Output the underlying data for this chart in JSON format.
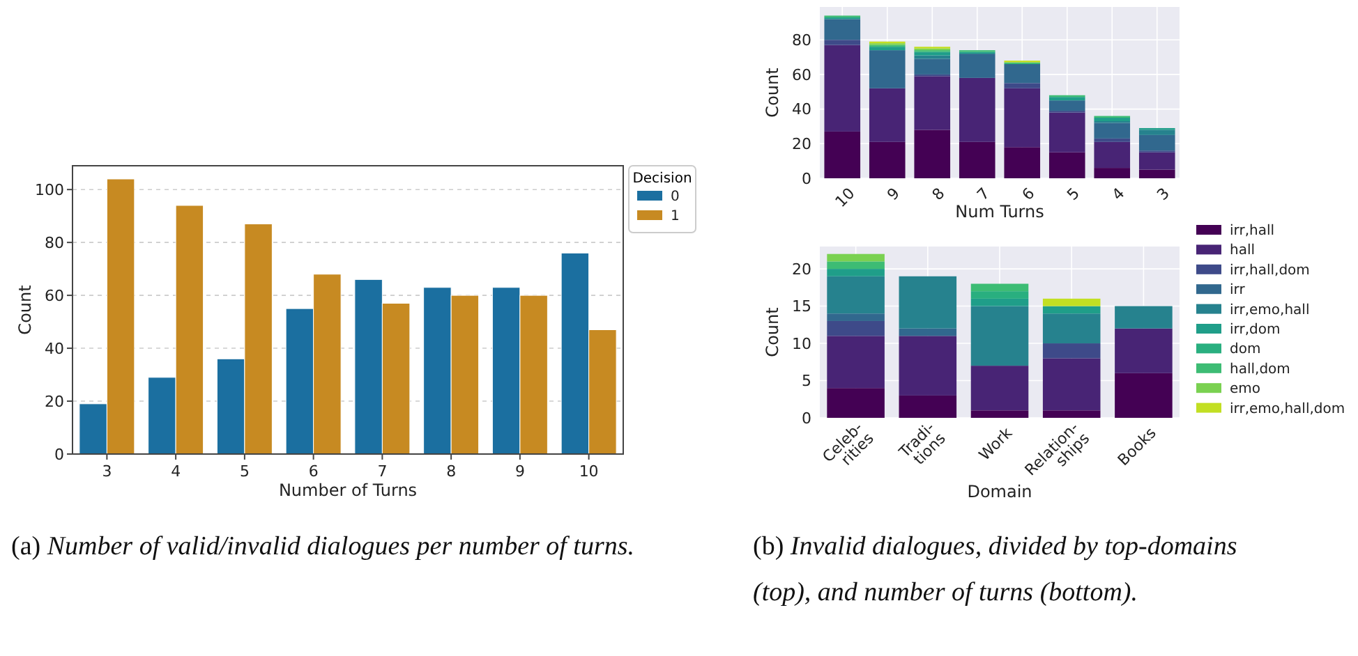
{
  "chart_data": [
    {
      "type": "bar",
      "xlabel": "Number of Turns",
      "ylabel": "Count",
      "legend_title": "Decision",
      "legend": "top right",
      "grid": "y",
      "categories": [
        "3",
        "4",
        "5",
        "6",
        "7",
        "8",
        "9",
        "10"
      ],
      "ylim": [
        0,
        109
      ],
      "yticks": [
        0,
        20,
        40,
        60,
        80,
        100
      ],
      "series": [
        {
          "name": "0",
          "color": "#1b6fa0",
          "values": [
            19,
            29,
            36,
            55,
            66,
            63,
            63,
            76
          ]
        },
        {
          "name": "1",
          "color": "#c78a22",
          "values": [
            104,
            94,
            87,
            68,
            57,
            60,
            60,
            47
          ]
        }
      ],
      "annotations": [
        "(a) Number of valid/invalid dialogues per number of turns."
      ]
    },
    {
      "type": "bar",
      "stacked": true,
      "xlabel": "Num Turns",
      "ylabel": "Count",
      "grid": true,
      "categories": [
        "10",
        "9",
        "8",
        "7",
        "6",
        "5",
        "4",
        "3"
      ],
      "ylim": [
        0,
        99
      ],
      "yticks": [
        0,
        20,
        40,
        60,
        80
      ],
      "series": [
        {
          "color": "#440154",
          "values": [
            27,
            21,
            28,
            21,
            18,
            15,
            6,
            5
          ]
        },
        {
          "color": "#482475",
          "values": [
            50,
            31,
            31,
            37,
            34,
            23,
            15,
            10
          ]
        },
        {
          "color": "#3e4a89",
          "values": [
            3,
            0,
            1,
            0,
            3,
            1,
            2,
            1
          ]
        },
        {
          "color": "#31688e",
          "values": [
            12,
            22,
            9,
            14,
            11,
            6,
            9,
            9
          ]
        },
        {
          "color": "#26828e",
          "values": [
            0,
            0,
            2,
            0,
            0,
            0,
            1,
            3
          ]
        },
        {
          "color": "#1f9e89",
          "values": [
            1,
            2,
            2,
            1,
            0,
            2,
            2,
            1
          ]
        },
        {
          "color": "#29af7f",
          "values": [
            0,
            0,
            0,
            0,
            0,
            0,
            0,
            0
          ]
        },
        {
          "color": "#3dbc74",
          "values": [
            1,
            1,
            1,
            1,
            1,
            1,
            1,
            0
          ]
        },
        {
          "color": "#7ad151",
          "values": [
            0,
            1,
            1,
            0,
            0,
            0,
            0,
            0
          ]
        },
        {
          "color": "#c2df23",
          "values": [
            0,
            1,
            1,
            0,
            1,
            0,
            0,
            0
          ]
        }
      ]
    },
    {
      "type": "bar",
      "stacked": true,
      "xlabel": "Domain",
      "ylabel": "Count",
      "grid": true,
      "legend": "right",
      "categories": [
        "Celeb-\nrities",
        "Tradi-\ntions",
        "Work",
        "Relation-\nships",
        "Books"
      ],
      "ylim": [
        0,
        23
      ],
      "yticks": [
        0,
        5,
        10,
        15,
        20
      ],
      "series": [
        {
          "name": "irr,hall",
          "color": "#440154",
          "values": [
            4,
            3,
            1,
            1,
            6
          ]
        },
        {
          "name": "hall",
          "color": "#482475",
          "values": [
            7,
            8,
            6,
            7,
            6
          ]
        },
        {
          "name": "irr,hall,dom",
          "color": "#3e4a89",
          "values": [
            2,
            0,
            0,
            2,
            0
          ]
        },
        {
          "name": "irr",
          "color": "#31688e",
          "values": [
            1,
            1,
            0,
            0,
            0
          ]
        },
        {
          "name": "irr,emo,hall",
          "color": "#26828e",
          "values": [
            5,
            7,
            8,
            4,
            3
          ]
        },
        {
          "name": "irr,dom",
          "color": "#1f9e89",
          "values": [
            1,
            0,
            1,
            1,
            0
          ]
        },
        {
          "name": "dom",
          "color": "#29af7f",
          "values": [
            0,
            0,
            1,
            0,
            0
          ]
        },
        {
          "name": "hall,dom",
          "color": "#3dbc74",
          "values": [
            1,
            0,
            1,
            0,
            0
          ]
        },
        {
          "name": "emo",
          "color": "#7ad151",
          "values": [
            1,
            0,
            0,
            0,
            0
          ]
        },
        {
          "name": "irr,emo,hall,dom",
          "color": "#c2df23",
          "values": [
            0,
            0,
            0,
            1,
            0
          ]
        }
      ],
      "annotations": [
        "(b) Invalid dialogues, divided by top-domains (top), and number of turns (bottom)."
      ]
    }
  ]
}
